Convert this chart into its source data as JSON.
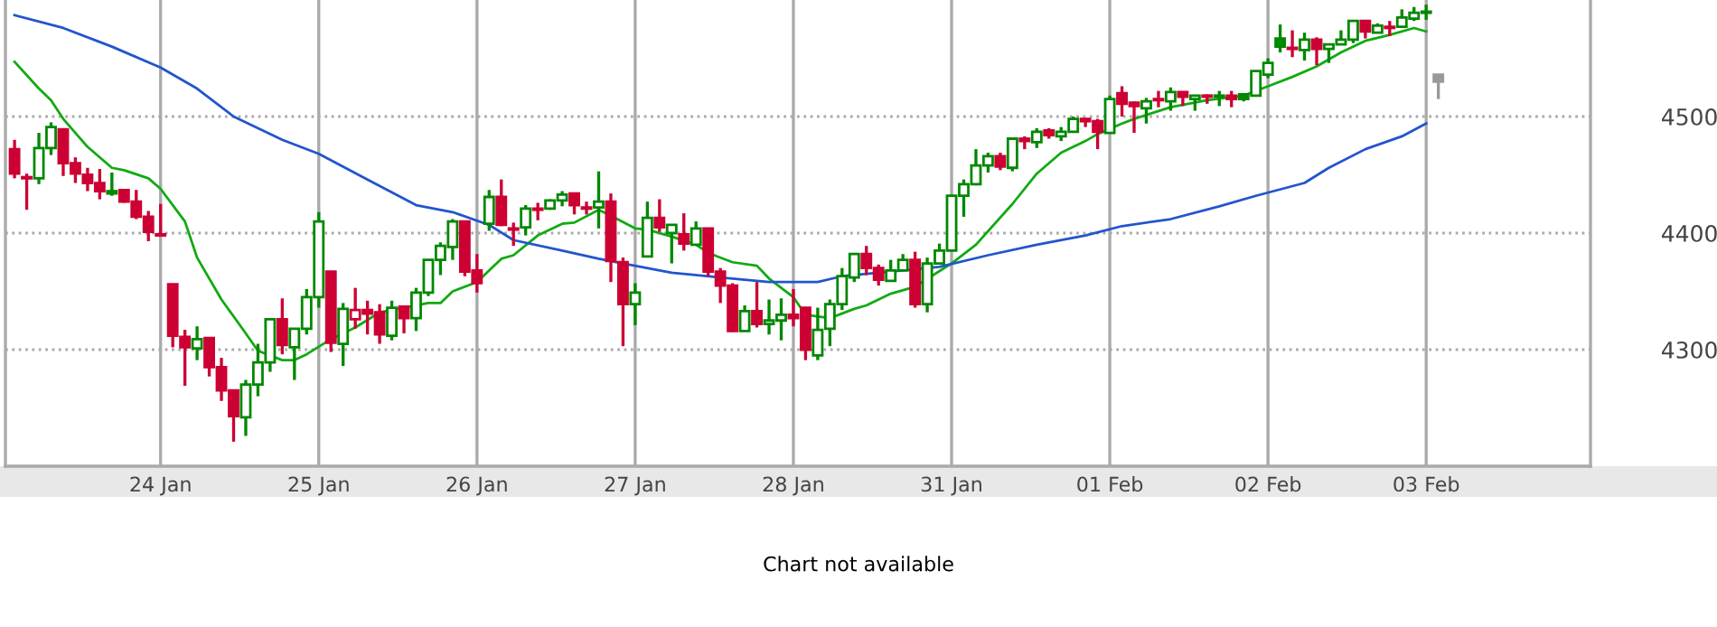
{
  "chart_data": {
    "type": "candlestick",
    "categories": [
      null,
      null,
      null,
      null,
      null,
      null,
      null,
      null,
      null,
      null,
      null,
      null,
      "24 Jan",
      null,
      null,
      null,
      null,
      null,
      null,
      null,
      null,
      null,
      null,
      null,
      null,
      "25 Jan",
      null,
      null,
      null,
      null,
      null,
      null,
      null,
      null,
      null,
      null,
      null,
      null,
      "26 Jan",
      null,
      null,
      null,
      null,
      null,
      null,
      null,
      null,
      null,
      null,
      null,
      null,
      "27 Jan",
      null,
      null,
      null,
      null,
      null,
      null,
      null,
      null,
      null,
      null,
      null,
      null,
      "28 Jan",
      null,
      null,
      null,
      null,
      null,
      null,
      null,
      null,
      null,
      null,
      null,
      null,
      "31 Jan",
      null,
      null,
      null,
      null,
      null,
      null,
      null,
      null,
      null,
      null,
      null,
      null,
      "01 Feb",
      null,
      null,
      null,
      null,
      null,
      null,
      null,
      null,
      null,
      null,
      null,
      null,
      "02 Feb",
      null,
      null,
      null,
      null,
      null,
      null,
      null,
      null,
      null,
      null,
      null,
      null,
      "03 Feb",
      null,
      null,
      null,
      null,
      null,
      null,
      null,
      null,
      null,
      null,
      null,
      null,
      null
    ],
    "ohlc": [
      [
        4472,
        4480,
        4447,
        4451
      ],
      [
        4448,
        4451,
        4420,
        4447
      ],
      [
        4447,
        4486,
        4442,
        4473
      ],
      [
        4473,
        4495,
        4467,
        4491
      ],
      [
        4489,
        4489,
        4449,
        4460
      ],
      [
        4460,
        4465,
        4443,
        4451
      ],
      [
        4450,
        4456,
        4436,
        4443
      ],
      [
        4443,
        4455,
        4429,
        4436
      ],
      [
        4436,
        4452,
        4432,
        4434
      ],
      [
        4437,
        4438,
        4426,
        4427
      ],
      [
        4427,
        4437,
        4412,
        4414
      ],
      [
        4414,
        4419,
        4393,
        4401
      ],
      [
        4399,
        4425,
        4397,
        4398
      ],
      [
        4356,
        4356,
        4302,
        4312
      ],
      [
        4311,
        4317,
        4269,
        4302
      ],
      [
        4301,
        4320,
        4291,
        4309
      ],
      [
        4310,
        4310,
        4277,
        4285
      ],
      [
        4285,
        4293,
        4256,
        4265
      ],
      [
        4265,
        4265,
        4221,
        4243
      ],
      [
        4242,
        4274,
        4226,
        4270
      ],
      [
        4270,
        4305,
        4260,
        4289
      ],
      [
        4289,
        4326,
        4281,
        4326
      ],
      [
        4326,
        4344,
        4296,
        4304
      ],
      [
        4302,
        4318,
        4274,
        4318
      ],
      [
        4318,
        4352,
        4313,
        4345
      ],
      [
        4345,
        4418,
        4336,
        4410
      ],
      [
        4367,
        4367,
        4298,
        4306
      ],
      [
        4305,
        4340,
        4286,
        4335
      ],
      [
        4326,
        4353,
        4318,
        4334
      ],
      [
        4334,
        4342,
        4313,
        4331
      ],
      [
        4332,
        4339,
        4305,
        4313
      ],
      [
        4312,
        4342,
        4308,
        4336
      ],
      [
        4337,
        4337,
        4314,
        4327
      ],
      [
        4327,
        4353,
        4316,
        4349
      ],
      [
        4349,
        4377,
        4346,
        4377
      ],
      [
        4377,
        4392,
        4364,
        4389
      ],
      [
        4388,
        4412,
        4377,
        4410
      ],
      [
        4410,
        4410,
        4363,
        4367
      ],
      [
        4368,
        4382,
        4349,
        4357
      ],
      [
        4408,
        4437,
        4402,
        4431
      ],
      [
        4431,
        4446,
        4406,
        4407
      ],
      [
        4404,
        4409,
        4389,
        4403
      ],
      [
        4405,
        4424,
        4398,
        4421
      ],
      [
        4421,
        4426,
        4411,
        4420
      ],
      [
        4421,
        4429,
        4420,
        4428
      ],
      [
        4428,
        4436,
        4423,
        4433
      ],
      [
        4434,
        4434,
        4416,
        4424
      ],
      [
        4422,
        4427,
        4416,
        4421
      ],
      [
        4422,
        4453,
        4404,
        4427
      ],
      [
        4427,
        4434,
        4358,
        4376
      ],
      [
        4375,
        4379,
        4303,
        4339
      ],
      [
        4339,
        4357,
        4321,
        4349
      ],
      [
        4380,
        4427,
        4380,
        4413
      ],
      [
        4413,
        4429,
        4401,
        4405
      ],
      [
        4400,
        4407,
        4374,
        4407
      ],
      [
        4399,
        4417,
        4385,
        4391
      ],
      [
        4390,
        4410,
        4390,
        4404
      ],
      [
        4404,
        4404,
        4363,
        4367
      ],
      [
        4367,
        4370,
        4340,
        4355
      ],
      [
        4355,
        4357,
        4315,
        4316
      ],
      [
        4316,
        4338,
        4316,
        4333
      ],
      [
        4333,
        4358,
        4319,
        4322
      ],
      [
        4322,
        4343,
        4313,
        4325
      ],
      [
        4325,
        4344,
        4308,
        4330
      ],
      [
        4330,
        4352,
        4320,
        4327
      ],
      [
        4336,
        4336,
        4291,
        4300
      ],
      [
        4295,
        4336,
        4291,
        4317
      ],
      [
        4318,
        4343,
        4303,
        4339
      ],
      [
        4339,
        4370,
        4334,
        4363
      ],
      [
        4362,
        4383,
        4358,
        4382
      ],
      [
        4382,
        4389,
        4364,
        4370
      ],
      [
        4370,
        4373,
        4355,
        4360
      ],
      [
        4359,
        4377,
        4359,
        4368
      ],
      [
        4368,
        4382,
        4368,
        4377
      ],
      [
        4377,
        4384,
        4336,
        4339
      ],
      [
        4339,
        4379,
        4332,
        4374
      ],
      [
        4374,
        4391,
        4373,
        4385
      ],
      [
        4385,
        4433,
        4385,
        4432
      ],
      [
        4432,
        4446,
        4414,
        4442
      ],
      [
        4442,
        4472,
        4441,
        4458
      ],
      [
        4458,
        4469,
        4452,
        4466
      ],
      [
        4466,
        4469,
        4454,
        4457
      ],
      [
        4456,
        4482,
        4453,
        4481
      ],
      [
        4481,
        4483,
        4472,
        4479
      ],
      [
        4478,
        4490,
        4473,
        4487
      ],
      [
        4488,
        4490,
        4481,
        4484
      ],
      [
        4483,
        4491,
        4479,
        4487
      ],
      [
        4487,
        4500,
        4486,
        4498
      ],
      [
        4498,
        4498,
        4491,
        4496
      ],
      [
        4496,
        4498,
        4472,
        4487
      ],
      [
        4486,
        4518,
        4486,
        4515
      ],
      [
        4520,
        4526,
        4500,
        4511
      ],
      [
        4512,
        4513,
        4486,
        4509
      ],
      [
        4507,
        4516,
        4494,
        4513
      ],
      [
        4515,
        4522,
        4508,
        4514
      ],
      [
        4513,
        4525,
        4505,
        4521
      ],
      [
        4521,
        4521,
        4509,
        4517
      ],
      [
        4515,
        4518,
        4505,
        4518
      ],
      [
        4518,
        4519,
        4511,
        4517
      ],
      [
        4517,
        4522,
        4509,
        4518
      ],
      [
        4518,
        4522,
        4508,
        4515
      ],
      [
        4519,
        4520,
        4513,
        4515
      ],
      [
        4518,
        4539,
        4518,
        4539
      ],
      [
        4536,
        4550,
        4533,
        4546
      ],
      [
        4567,
        4579,
        4555,
        4560
      ],
      [
        4559,
        4574,
        4551,
        4558
      ],
      [
        4557,
        4572,
        4548,
        4566
      ],
      [
        4566,
        4568,
        4544,
        4558
      ],
      [
        4558,
        4562,
        4546,
        4562
      ],
      [
        4562,
        4574,
        4562,
        4566
      ],
      [
        4566,
        4582,
        4563,
        4582
      ],
      [
        4582,
        4583,
        4567,
        4573
      ],
      [
        4572,
        4580,
        4572,
        4578
      ],
      [
        4577,
        4582,
        4569,
        4576
      ],
      [
        4577,
        4592,
        4577,
        4585
      ],
      [
        4584,
        4594,
        4582,
        4589
      ],
      [
        4589,
        4596,
        4583,
        4590
      ],
      [
        4536,
        4536,
        4515,
        4530
      ],
      null,
      null,
      null,
      null,
      null,
      null,
      null,
      null,
      null,
      null,
      null,
      null
    ],
    "colors": [
      "#cc0033",
      "#cc0033",
      "#008800",
      "#008800",
      "#cc0033",
      "#cc0033",
      "#cc0033",
      "#cc0033",
      "#008800",
      "#cc0033",
      "#cc0033",
      "#cc0033",
      "#cc0033",
      "#cc0033",
      "#cc0033",
      "#008800",
      "#cc0033",
      "#cc0033",
      "#cc0033",
      "#008800",
      "#008800",
      "#008800",
      "#cc0033",
      "#008800",
      "#008800",
      "#008800",
      "#cc0033",
      "#008800",
      "#cc0033",
      "#cc0033",
      "#cc0033",
      "#008800",
      "#cc0033",
      "#008800",
      "#008800",
      "#008800",
      "#008800",
      "#cc0033",
      "#cc0033",
      "#008800",
      "#cc0033",
      "#cc0033",
      "#008800",
      "#cc0033",
      "#008800",
      "#008800",
      "#cc0033",
      "#cc0033",
      "#008800",
      "#cc0033",
      "#cc0033",
      "#008800",
      "#008800",
      "#cc0033",
      "#008800",
      "#cc0033",
      "#008800",
      "#cc0033",
      "#cc0033",
      "#cc0033",
      "#008800",
      "#cc0033",
      "#008800",
      "#008800",
      "#cc0033",
      "#cc0033",
      "#008800",
      "#008800",
      "#008800",
      "#008800",
      "#cc0033",
      "#cc0033",
      "#008800",
      "#008800",
      "#cc0033",
      "#008800",
      "#008800",
      "#008800",
      "#008800",
      "#008800",
      "#008800",
      "#cc0033",
      "#008800",
      "#cc0033",
      "#008800",
      "#cc0033",
      "#008800",
      "#008800",
      "#cc0033",
      "#cc0033",
      "#008800",
      "#cc0033",
      "#cc0033",
      "#008800",
      "#cc0033",
      "#008800",
      "#cc0033",
      "#008800",
      "#cc0033",
      "#008800",
      "#cc0033",
      "#008800",
      "#008800",
      "#008800",
      "#008800",
      "#cc0033",
      "#008800",
      "#cc0033",
      "#008800",
      "#008800",
      "#008800",
      "#cc0033",
      "#008800",
      "#cc0033",
      "#008800",
      "#008800",
      "#008800",
      "#999999",
      null,
      null,
      null,
      null,
      null,
      null,
      null,
      null,
      null,
      null,
      null,
      null
    ],
    "series": [
      {
        "type": "line",
        "color": "#11aa11",
        "values": [
          4547,
          null,
          4524,
          4514,
          4498,
          null,
          4474,
          null,
          4456,
          4454,
          null,
          4447,
          4438,
          null,
          4410,
          4379,
          null,
          4343,
          null,
          4314,
          4299,
          null,
          4291,
          4291,
          4296,
          null,
          4309,
          null,
          4319,
          null,
          4332,
          null,
          4336,
          null,
          4340,
          4340,
          4350,
          null,
          4358,
          null,
          4378,
          4381,
          null,
          4398,
          null,
          4408,
          4409,
          null,
          4420,
          4415,
          null,
          4404,
          4403,
          null,
          4397,
          null,
          4390,
          4383,
          null,
          4375,
          null,
          4372,
          4361,
          null,
          4345,
          4330,
          null,
          4327,
          null,
          4335,
          4338,
          null,
          4348,
          null,
          4354,
          null,
          null,
          4374,
          null,
          4390,
          null,
          null,
          4425,
          null,
          4451,
          null,
          4469,
          null,
          4479,
          4485,
          null,
          4494,
          4498,
          null,
          null,
          4508,
          null,
          null,
          4514,
          null,
          null,
          4518,
          null,
          4526,
          null,
          4534,
          null,
          4543,
          null,
          4555,
          null,
          4565,
          null,
          4570,
          null,
          4576,
          4573,
          null,
          null,
          null,
          null,
          null,
          null,
          null,
          null,
          null,
          null,
          null,
          null,
          null
        ]
      },
      {
        "type": "line",
        "color": "#2255cc",
        "values": [
          4587,
          null,
          null,
          null,
          4576,
          null,
          null,
          null,
          4560,
          null,
          null,
          null,
          4542,
          null,
          null,
          4524,
          null,
          null,
          4500,
          null,
          null,
          null,
          4480,
          null,
          null,
          4468,
          null,
          null,
          null,
          4446,
          null,
          null,
          null,
          4424,
          null,
          null,
          4418,
          null,
          null,
          4407,
          null,
          4394,
          null,
          null,
          null,
          4385,
          null,
          null,
          4378,
          null,
          4374,
          null,
          null,
          null,
          4366,
          null,
          null,
          null,
          4362,
          null,
          null,
          null,
          4358,
          null,
          null,
          null,
          4358,
          null,
          4363,
          null,
          null,
          null,
          4367,
          null,
          null,
          null,
          4371,
          null,
          null,
          null,
          4381,
          null,
          null,
          null,
          4390,
          null,
          null,
          null,
          4398,
          null,
          null,
          4406,
          null,
          null,
          null,
          4412,
          null,
          null,
          null,
          4423,
          null,
          null,
          4432,
          null,
          null,
          null,
          4443,
          null,
          4456,
          null,
          null,
          4472,
          null,
          null,
          4483,
          null,
          4494,
          null,
          null,
          null,
          null,
          null,
          null,
          null,
          null,
          null,
          null,
          null,
          null,
          null
        ]
      }
    ],
    "ylim": [
      4200,
      4600
    ],
    "yticks": [
      4300,
      4400,
      4500
    ],
    "grid": true,
    "annotations": [
      "Chart not available"
    ]
  }
}
